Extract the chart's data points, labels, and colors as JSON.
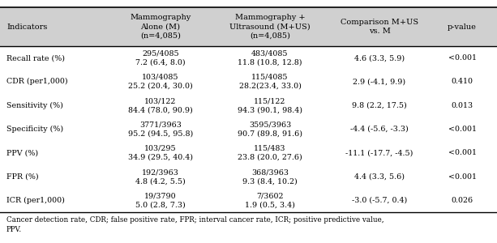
{
  "header": [
    "Indicators",
    "Mammography\nAlone (M)\n(n=4,085)",
    "Mammography +\nUltrasound (M+US)\n(n=4,085)",
    "Comparison M+US\nvs. M",
    "p-value"
  ],
  "rows": [
    {
      "indicator": "Recall rate (%)",
      "col1_line1": "295/4085",
      "col1_line2": "7.2 (6.4, 8.0)",
      "col2_line1": "483/4085",
      "col2_line2": "11.8 (10.8, 12.8)",
      "comparison": "4.6 (3.3, 5.9)",
      "pvalue": "<0.001"
    },
    {
      "indicator": "CDR (per1,000)",
      "col1_line1": "103/4085",
      "col1_line2": "25.2 (20.4, 30.0)",
      "col2_line1": "115/4085",
      "col2_line2": "28.2(23.4, 33.0)",
      "comparison": "2.9 (-4.1, 9.9)",
      "pvalue": "0.410"
    },
    {
      "indicator": "Sensitivity (%)",
      "col1_line1": "103/122",
      "col1_line2": "84.4 (78.0, 90.9)",
      "col2_line1": "115/122",
      "col2_line2": "94.3 (90.1, 98.4)",
      "comparison": "9.8 (2.2, 17.5)",
      "pvalue": "0.013"
    },
    {
      "indicator": "Specificity (%)",
      "col1_line1": "3771/3963",
      "col1_line2": "95.2 (94.5, 95.8)",
      "col2_line1": "3595/3963",
      "col2_line2": "90.7 (89.8, 91.6)",
      "comparison": "-4.4 (-5.6, -3.3)",
      "pvalue": "<0.001"
    },
    {
      "indicator": "PPV (%)",
      "col1_line1": "103/295",
      "col1_line2": "34.9 (29.5, 40.4)",
      "col2_line1": "115/483",
      "col2_line2": "23.8 (20.0, 27.6)",
      "comparison": "-11.1 (-17.7, -4.5)",
      "pvalue": "<0.001"
    },
    {
      "indicator": "FPR (%)",
      "col1_line1": "192/3963",
      "col1_line2": "4.8 (4.2, 5.5)",
      "col2_line1": "368/3963",
      "col2_line2": "9.3 (8.4, 10.2)",
      "comparison": "4.4 (3.3, 5.6)",
      "pvalue": "<0.001"
    },
    {
      "indicator": "ICR (per1,000)",
      "col1_line1": "19/3790",
      "col1_line2": "5.0 (2.8, 7.3)",
      "col2_line1": "7/3602",
      "col2_line2": "1.9 (0.5, 3.4)",
      "comparison": "-3.0 (-5.7, 0.4)",
      "pvalue": "0.026"
    }
  ],
  "footnote": "Cancer detection rate, CDR; false positive rate, FPR; interval cancer rate, ICR; positive predictive value,\nPPV.",
  "header_bg": "#d0d0d0",
  "header_font_size": 7.0,
  "cell_font_size": 6.8,
  "footnote_font_size": 6.3
}
